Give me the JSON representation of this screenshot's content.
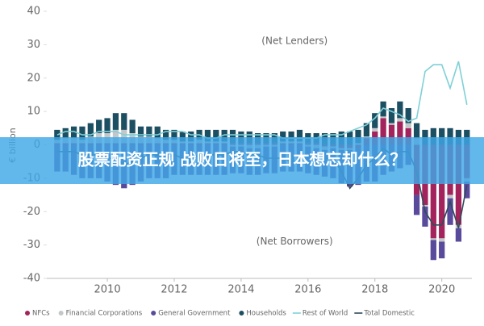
{
  "chart_data": {
    "type": "bar",
    "y_label": "€ billion",
    "annotations": [
      "(Net Lenders)",
      "(Net Borrowers)"
    ],
    "xlim": [
      2008.19,
      2020.9
    ],
    "xticks": [
      2010,
      2012,
      2014,
      2016,
      2018,
      2020
    ],
    "ylim": [
      -40,
      40
    ],
    "yticks": [
      -40,
      -30,
      -20,
      -10,
      0,
      10,
      20,
      30,
      40
    ],
    "x": [
      2008.5,
      2008.75,
      2009,
      2009.25,
      2009.5,
      2009.75,
      2010,
      2010.25,
      2010.5,
      2010.75,
      2011,
      2011.25,
      2011.5,
      2011.75,
      2012,
      2012.25,
      2012.5,
      2012.75,
      2013,
      2013.25,
      2013.5,
      2013.75,
      2014,
      2014.25,
      2014.5,
      2014.75,
      2015,
      2015.25,
      2015.5,
      2015.75,
      2016,
      2016.25,
      2016.5,
      2016.75,
      2017,
      2017.25,
      2017.5,
      2017.75,
      2018,
      2018.25,
      2018.5,
      2018.75,
      2019,
      2019.25,
      2019.5,
      2019.75,
      2020,
      2020.25,
      2020.5,
      2020.75
    ],
    "series": [
      {
        "name": "NFCs",
        "kind": "bar",
        "color": "#a3245c",
        "values": [
          0.5,
          0.5,
          0.5,
          0.5,
          0.5,
          0.5,
          0.5,
          0.5,
          0.5,
          0.5,
          0.5,
          0.5,
          0.5,
          0.5,
          0.5,
          0.5,
          0.5,
          0.5,
          0.5,
          0.5,
          0.5,
          0.5,
          0.5,
          0.5,
          0.5,
          0.5,
          0.5,
          0.5,
          0.5,
          0.5,
          0.5,
          0.5,
          -0.5,
          -0.5,
          -1,
          -1,
          -1,
          2,
          4,
          8,
          6,
          7,
          5,
          -15,
          -18,
          -28,
          -28,
          -15,
          -24,
          -10
        ]
      },
      {
        "name": "Financial Corporations",
        "kind": "bar",
        "color": "#c4c7c9",
        "values": [
          1,
          1.5,
          1.5,
          1,
          2,
          3,
          3,
          4,
          4,
          3,
          2,
          2,
          1.5,
          1,
          1,
          0.5,
          0.5,
          1,
          0.5,
          0.5,
          0.5,
          -0.5,
          -0.5,
          -1,
          -1,
          -0.5,
          -0.5,
          0.5,
          0.5,
          0.5,
          -0.5,
          -1,
          -1,
          -0.5,
          -0.5,
          -0.5,
          0.5,
          0.5,
          1,
          0.5,
          0.5,
          1,
          1.5,
          2,
          -0.5,
          -0.5,
          -1,
          -1,
          -1,
          -1
        ]
      },
      {
        "name": "General Government",
        "kind": "bar",
        "color": "#5a4a9c",
        "values": [
          -8,
          -8,
          -9,
          -10,
          -10,
          -10,
          -11,
          -12,
          -13,
          -12,
          -11,
          -10,
          -10,
          -10,
          -9,
          -9,
          -9,
          -9,
          -9,
          -9,
          -9,
          -8,
          -8,
          -8,
          -8,
          -8,
          -8,
          -8,
          -8,
          -8,
          -8,
          -8,
          -8,
          -9,
          -10,
          -11,
          -11,
          -11,
          -11,
          -9,
          -8,
          -7,
          -6,
          -6,
          -6,
          -6,
          -5,
          -8,
          -4,
          -5
        ]
      },
      {
        "name": "Households",
        "kind": "bar",
        "color": "#1d4f63",
        "values": [
          3,
          3,
          3.5,
          4,
          4,
          4,
          4.5,
          5,
          5,
          4,
          3,
          3,
          3.5,
          3,
          3,
          3,
          3,
          3,
          3.5,
          3.5,
          3.5,
          4,
          3.5,
          3.5,
          3,
          3,
          3,
          3,
          3,
          3.5,
          3,
          3,
          3.5,
          3.5,
          4,
          4,
          4,
          4,
          4.5,
          4.5,
          4.5,
          5,
          4.5,
          4.5,
          4.5,
          5,
          5,
          5,
          4.5,
          4.5
        ]
      },
      {
        "name": "Rest of World",
        "kind": "line",
        "color": "#7fd0d6",
        "values": [
          3,
          4,
          4,
          3,
          3,
          4,
          4,
          4,
          3,
          3,
          3,
          3,
          3,
          4,
          4,
          4,
          3,
          3,
          2,
          2,
          3,
          3,
          3,
          3,
          3,
          3,
          3,
          2,
          2,
          2,
          2,
          2,
          3,
          3,
          3,
          4,
          5,
          6,
          8,
          11,
          10,
          9,
          7,
          8,
          22,
          24,
          24,
          17,
          25,
          12
        ]
      },
      {
        "name": "Total Domestic",
        "kind": "line",
        "color": "#2e4c5c",
        "values": [
          -2,
          -2,
          -2,
          -3,
          -3,
          -3,
          -4,
          -4,
          -6,
          -5,
          -4,
          -3,
          -3,
          -4,
          -3,
          -4,
          -4,
          -3,
          -3,
          -3,
          -3,
          -2,
          -2,
          -3,
          -3,
          -4,
          -4,
          -4,
          -5,
          -5,
          -6,
          -5,
          -4,
          -4,
          -8,
          -13,
          -10,
          -6,
          -4,
          -1,
          -3,
          -2,
          -2,
          -8,
          -20,
          -24,
          -24,
          -17,
          -25,
          -12
        ]
      }
    ]
  },
  "banner": {
    "text": "股票配资正规 战败日将至，日本想忘却什么？"
  }
}
